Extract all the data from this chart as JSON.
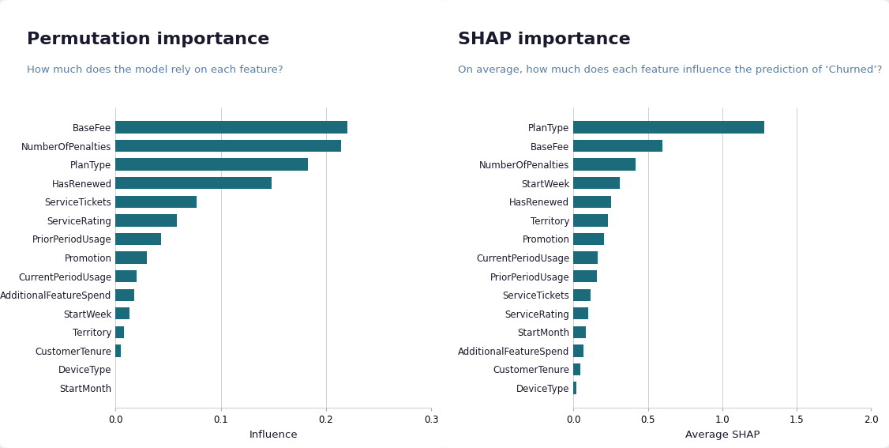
{
  "perm_title": "Permutation importance",
  "perm_subtitle": "How much does the model rely on each feature?",
  "perm_xlabel": "Influence",
  "perm_features": [
    "StartMonth",
    "DeviceType",
    "CustomerTenure",
    "Territory",
    "StartWeek",
    "AdditionalFeatureSpend",
    "CurrentPeriodUsage",
    "Promotion",
    "PriorPeriodUsage",
    "ServiceRating",
    "ServiceTickets",
    "HasRenewed",
    "PlanType",
    "NumberOfPenalties",
    "BaseFee"
  ],
  "perm_values": [
    0.0,
    0.0,
    0.005,
    0.008,
    0.013,
    0.018,
    0.02,
    0.03,
    0.043,
    0.058,
    0.077,
    0.148,
    0.183,
    0.214,
    0.22
  ],
  "perm_xlim": [
    0,
    0.3
  ],
  "perm_xticks": [
    0,
    0.1,
    0.2,
    0.3
  ],
  "shap_title": "SHAP importance",
  "shap_subtitle": "On average, how much does each feature influence the prediction of ‘Churned’?",
  "shap_xlabel": "Average SHAP",
  "shap_features": [
    "DeviceType",
    "CustomerTenure",
    "AdditionalFeatureSpend",
    "StartMonth",
    "ServiceRating",
    "ServiceTickets",
    "PriorPeriodUsage",
    "CurrentPeriodUsage",
    "Promotion",
    "Territory",
    "HasRenewed",
    "StartWeek",
    "NumberOfPenalties",
    "BaseFee",
    "PlanType"
  ],
  "shap_values": [
    0.022,
    0.045,
    0.065,
    0.085,
    0.1,
    0.115,
    0.155,
    0.165,
    0.205,
    0.23,
    0.255,
    0.31,
    0.42,
    0.6,
    1.28
  ],
  "shap_xlim": [
    0,
    2
  ],
  "shap_xticks": [
    0,
    0.5,
    1.0,
    1.5,
    2.0
  ],
  "bar_color": "#1b6b7b",
  "title_color": "#1a1a2e",
  "subtitle_color": "#5b7fa6",
  "title_fontsize": 16,
  "subtitle_fontsize": 9.5,
  "label_fontsize": 8.5,
  "tick_fontsize": 8.5,
  "xlabel_fontsize": 9.5,
  "background_color": "#ebebeb",
  "panel_bg": "#ffffff",
  "grid_color": "#d0d0d0"
}
